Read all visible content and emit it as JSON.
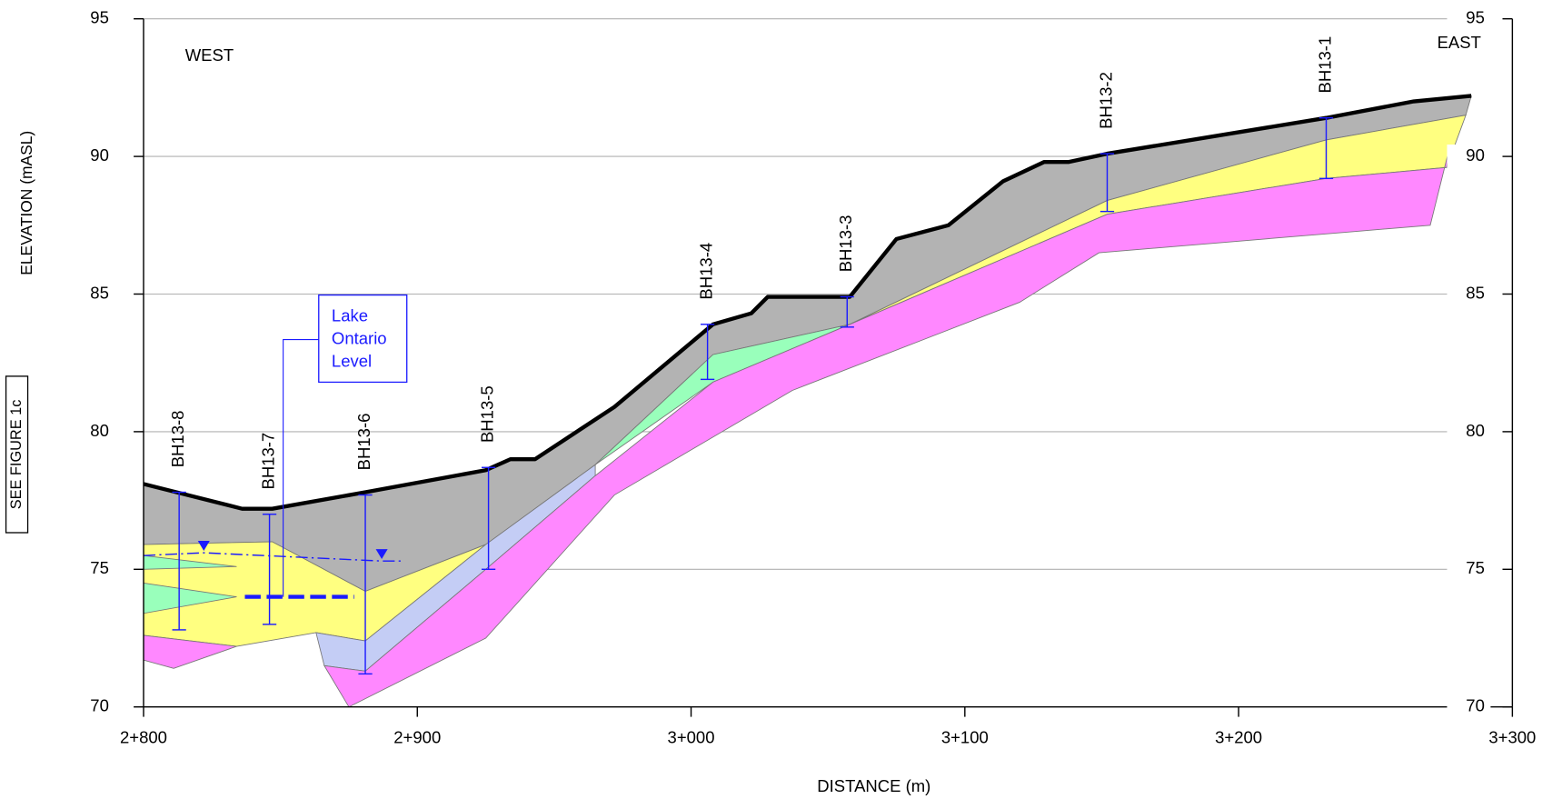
{
  "chart_data": {
    "type": "section",
    "xlabel": "DISTANCE (m)",
    "ylabel": "ELEVATION (mASL)",
    "xlim": [
      2800,
      3300
    ],
    "xticks": [
      {
        "value": 2800,
        "label": "2+800"
      },
      {
        "value": 2900,
        "label": "2+900"
      },
      {
        "value": 3000,
        "label": "3+000"
      },
      {
        "value": 3100,
        "label": "3+100"
      },
      {
        "value": 3200,
        "label": "3+200"
      },
      {
        "value": 3300,
        "label": "3+300"
      }
    ],
    "ylim": [
      70,
      95
    ],
    "yticks": [
      70,
      75,
      80,
      85,
      90,
      95
    ],
    "y2lim": [
      70,
      95
    ],
    "y2ticks": [
      70,
      75,
      80,
      85,
      90,
      95
    ],
    "grid": true,
    "annotations": {
      "west": "WEST",
      "east": "EAST",
      "see_figure": "SEE FIGURE 1c",
      "lake_label": [
        "Lake",
        "Ontario",
        "Level"
      ]
    },
    "layers": [
      {
        "color": "#b3b3b3",
        "x": [
          2800,
          2836,
          2847,
          2881,
          2925,
          2934,
          2943,
          2972,
          3008,
          3022,
          3028,
          3058,
          3075,
          3094,
          3114,
          3129,
          3138,
          3152,
          3232,
          3264,
          3285,
          3283,
          3232,
          3152,
          3058,
          3008,
          2965,
          2925,
          2881,
          2847,
          2800
        ],
        "y": [
          78.1,
          77.2,
          77.2,
          77.8,
          78.6,
          79.0,
          79.0,
          80.9,
          83.9,
          84.3,
          84.9,
          84.9,
          87.0,
          87.5,
          89.1,
          89.8,
          89.8,
          90.1,
          91.4,
          92.0,
          92.2,
          91.5,
          90.6,
          88.4,
          83.9,
          82.8,
          78.8,
          75.9,
          74.2,
          76.0,
          75.9
        ]
      },
      {
        "color": "#ffff80",
        "x": [
          2800,
          2847,
          2881,
          2925,
          2881,
          2863,
          2834,
          2800
        ],
        "y": [
          75.9,
          76.0,
          74.2,
          75.9,
          72.4,
          72.7,
          72.2,
          72.6
        ]
      },
      {
        "color": "#ffff80",
        "x": [
          3283,
          3232,
          3152,
          3058,
          3152,
          3232,
          3276
        ],
        "y": [
          91.5,
          90.6,
          88.4,
          83.9,
          87.9,
          89.2,
          89.6
        ]
      },
      {
        "color": "#99ffbb",
        "x": [
          2965,
          3008,
          3058,
          3008
        ],
        "y": [
          78.8,
          82.8,
          83.9,
          81.8
        ]
      },
      {
        "color": "#99ffbb",
        "x": [
          2800,
          2834,
          2800
        ],
        "y": [
          75.5,
          75.1,
          75.0
        ]
      },
      {
        "color": "#99ffbb",
        "x": [
          2800,
          2834,
          2800
        ],
        "y": [
          74.5,
          74.0,
          73.4
        ]
      },
      {
        "color": "#c4cdf5",
        "x": [
          2965,
          2925,
          2881,
          2863,
          2866,
          2881,
          2925,
          2965
        ],
        "y": [
          78.8,
          75.9,
          72.4,
          72.7,
          71.5,
          71.3,
          75.0,
          78.4
        ]
      },
      {
        "color": "#ff88ff",
        "x": [
          2965,
          2925,
          2881,
          2866,
          2875,
          2925,
          2972,
          3037,
          3120,
          3149,
          3270,
          3277,
          3276,
          3232,
          3152,
          3058,
          3008
        ],
        "y": [
          78.4,
          75.0,
          71.3,
          71.5,
          70.0,
          72.5,
          77.7,
          81.5,
          84.7,
          86.5,
          87.5,
          90.3,
          89.6,
          89.2,
          87.9,
          83.9,
          81.8
        ]
      },
      {
        "color": "#ff88ff",
        "x": [
          2800,
          2834,
          2811,
          2800
        ],
        "y": [
          72.6,
          72.2,
          71.4,
          71.7
        ]
      }
    ],
    "ground": {
      "color": "#000000",
      "x": [
        2800,
        2836,
        2847,
        2881,
        2925,
        2934,
        2943,
        2972,
        3008,
        3022,
        3028,
        3058,
        3075,
        3094,
        3114,
        3129,
        3138,
        3152,
        3232,
        3264,
        3285
      ],
      "y": [
        78.1,
        77.2,
        77.2,
        77.8,
        78.6,
        79.0,
        79.0,
        80.9,
        83.9,
        84.3,
        84.9,
        84.9,
        87.0,
        87.5,
        89.1,
        89.8,
        89.8,
        90.1,
        91.4,
        92.0,
        92.2
      ]
    },
    "boreholes": [
      {
        "name": "BH13-8",
        "x": 2813,
        "top": 77.8,
        "bottom": 72.8
      },
      {
        "name": "BH13-7",
        "x": 2846,
        "top": 77.0,
        "bottom": 73.0
      },
      {
        "name": "BH13-6",
        "x": 2881,
        "top": 77.7,
        "bottom": 71.2
      },
      {
        "name": "BH13-5",
        "x": 2926,
        "top": 78.7,
        "bottom": 75.0
      },
      {
        "name": "BH13-4",
        "x": 3006,
        "top": 83.9,
        "bottom": 81.9
      },
      {
        "name": "BH13-3",
        "x": 3057,
        "top": 84.9,
        "bottom": 83.8
      },
      {
        "name": "BH13-2",
        "x": 3152,
        "top": 90.1,
        "bottom": 88.0
      },
      {
        "name": "BH13-1",
        "x": 3232,
        "top": 91.4,
        "bottom": 89.2
      }
    ],
    "borehole_color": "#1a1aff",
    "water_level": {
      "color": "#1a1aff",
      "x": [
        2800,
        2822,
        2887,
        2894
      ],
      "y": [
        75.5,
        75.6,
        75.3,
        75.3
      ]
    },
    "lake_level": {
      "color": "#1a1aff",
      "x": [
        2837,
        2877
      ],
      "y": [
        74.0,
        74.0
      ]
    }
  }
}
